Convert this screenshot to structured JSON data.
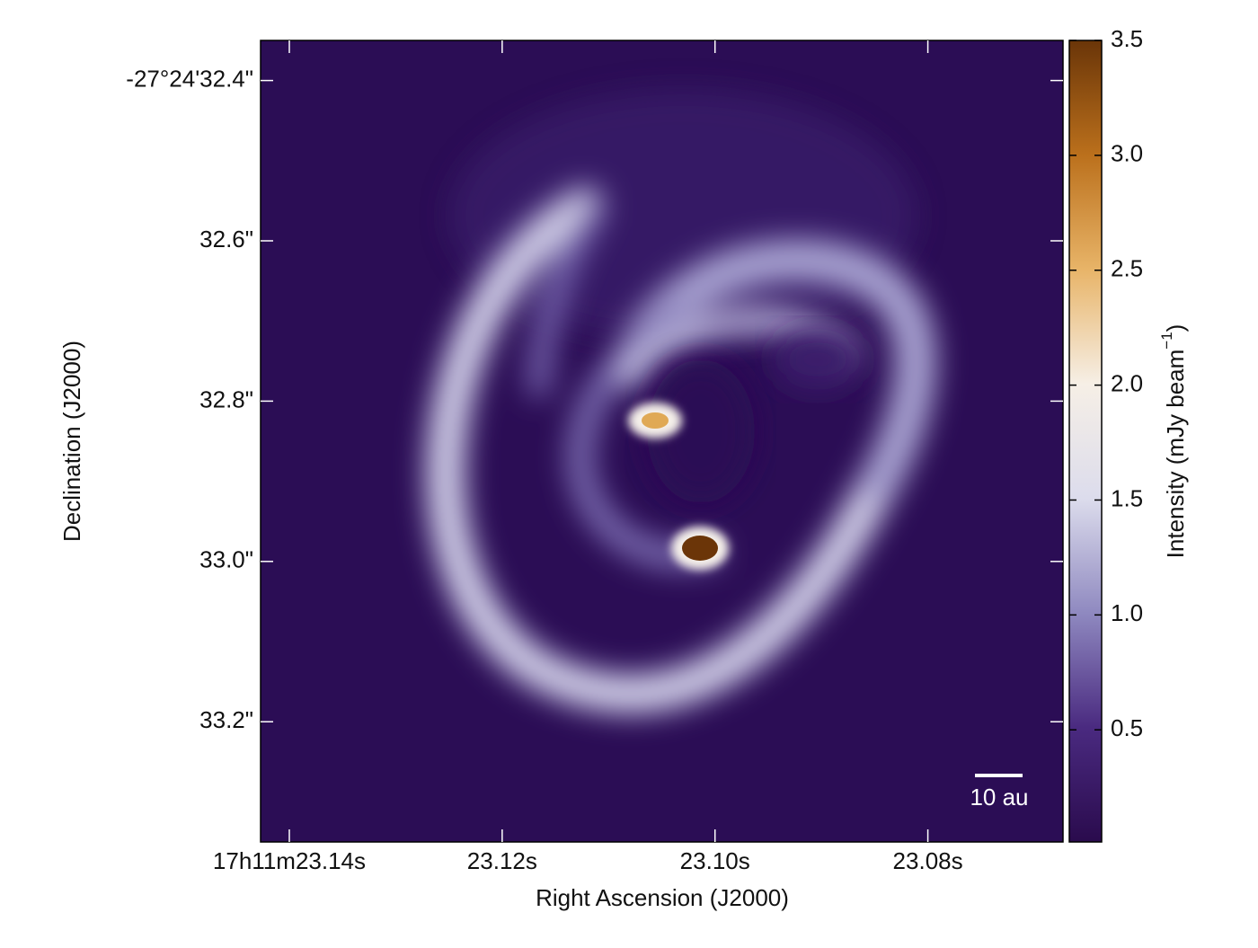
{
  "chart_data": {
    "type": "image",
    "xlabel": "Right Ascension (J2000)",
    "ylabel": "Declination (J2000)",
    "xlim": [
      23.1427,
      23.0673
    ],
    "xticks": [
      {
        "value": 23.14,
        "label": "17h11m23.14s"
      },
      {
        "value": 23.12,
        "label": "23.12s"
      },
      {
        "value": 23.1,
        "label": "23.10s"
      },
      {
        "value": 23.08,
        "label": "23.08s"
      }
    ],
    "ylim": [
      33.35,
      32.35
    ],
    "yticks": [
      {
        "value": 32.4,
        "label": "-27°24'32.4\""
      },
      {
        "value": 32.6,
        "label": "32.6\""
      },
      {
        "value": 32.8,
        "label": "32.8\""
      },
      {
        "value": 33.0,
        "label": "33.0\""
      },
      {
        "value": 33.2,
        "label": "33.2\""
      }
    ],
    "colorbar_label": [
      "Intensity (mJy beam",
      "−1",
      ")"
    ],
    "clim": [
      0.012,
      3.5
    ],
    "cticks": [
      0.5,
      {
        "value": 1.0,
        "label": "1.0"
      },
      1.5,
      {
        "value": 2.0,
        "label": "2.0"
      },
      2.5,
      {
        "value": 3.0,
        "label": "3.0"
      },
      3.5
    ],
    "colormap": [
      "#2a0b4d",
      "#4a2a80",
      "#8f89c0",
      "#dcdcec",
      "#f6efe6",
      "#e8b468",
      "#bb701c",
      "#6a3508"
    ],
    "annotation": "10 au"
  }
}
